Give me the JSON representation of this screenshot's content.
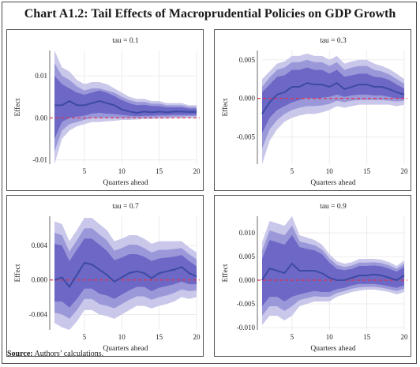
{
  "title": "Chart A1.2: Tail Effects of Macroprudential Policies on GDP Growth",
  "source_label": "Source:",
  "source_text": " Authors’ calculations.",
  "colors": {
    "band_outer": "#c9c7ea",
    "band_mid": "#9b98d9",
    "band_inner": "#6d68c6",
    "line": "#3d4aa3",
    "zero_line": "#e0304a",
    "grid": "#e6e6e6"
  },
  "chart_data": [
    {
      "type": "line",
      "panel_title": "tau = 0.1",
      "xlabel": "Quarters ahead",
      "ylabel": "Effect",
      "xlim": [
        1,
        20
      ],
      "ylim": [
        -0.011,
        0.016
      ],
      "xticks": [
        5,
        10,
        15,
        20
      ],
      "xtick_labels": [
        "5",
        "10",
        "15",
        "20"
      ],
      "yticks": [
        -0.01,
        0,
        0.01
      ],
      "ytick_labels": [
        "-0.01",
        "0.00",
        "0.01"
      ],
      "x": [
        1,
        2,
        3,
        4,
        5,
        6,
        7,
        8,
        9,
        10,
        11,
        12,
        13,
        14,
        15,
        16,
        17,
        18,
        19,
        20
      ],
      "estimate": [
        0.003,
        0.003,
        0.004,
        0.003,
        0.003,
        0.0035,
        0.004,
        0.0035,
        0.003,
        0.002,
        0.0015,
        0.0012,
        0.0015,
        0.0013,
        0.0015,
        0.0013,
        0.0015,
        0.0015,
        0.0014,
        0.0014
      ],
      "band_outer": {
        "lower": [
          -0.011,
          -0.005,
          -0.003,
          -0.002,
          -0.0015,
          -0.001,
          -0.001,
          -0.0008,
          -0.0007,
          -0.0005,
          -0.0005,
          -0.0004,
          -0.0003,
          -0.0003,
          -0.0002,
          -0.0002,
          -0.0001,
          -0.0001,
          0,
          0
        ],
        "upper": [
          0.016,
          0.012,
          0.011,
          0.009,
          0.008,
          0.0085,
          0.0085,
          0.008,
          0.007,
          0.006,
          0.005,
          0.0045,
          0.0045,
          0.004,
          0.004,
          0.0035,
          0.0035,
          0.0035,
          0.003,
          0.003
        ]
      },
      "band_mid": {
        "lower": [
          -0.008,
          -0.003,
          -0.0015,
          -0.001,
          -0.0005,
          0,
          0,
          0,
          0,
          0,
          0,
          0,
          0.0001,
          0.0001,
          0.0002,
          0.0002,
          0.0003,
          0.0003,
          0.0004,
          0.0004
        ],
        "upper": [
          0.013,
          0.01,
          0.009,
          0.0075,
          0.0065,
          0.007,
          0.007,
          0.0065,
          0.006,
          0.005,
          0.0042,
          0.0038,
          0.0038,
          0.0034,
          0.0034,
          0.003,
          0.003,
          0.003,
          0.0026,
          0.0026
        ]
      },
      "band_inner": {
        "lower": [
          -0.005,
          -0.001,
          0,
          0.0003,
          0.0005,
          0.001,
          0.0012,
          0.001,
          0.0009,
          0.0007,
          0.0005,
          0.0004,
          0.0005,
          0.0005,
          0.0006,
          0.0006,
          0.0007,
          0.0007,
          0.0007,
          0.0007
        ],
        "upper": [
          0.01,
          0.008,
          0.007,
          0.006,
          0.0055,
          0.006,
          0.0065,
          0.006,
          0.0052,
          0.0042,
          0.0035,
          0.003,
          0.0031,
          0.0028,
          0.0028,
          0.0025,
          0.0025,
          0.0025,
          0.0022,
          0.0022
        ]
      }
    },
    {
      "type": "line",
      "panel_title": "tau = 0.3",
      "xlabel": "Quarters ahead",
      "ylabel": "Effect",
      "xlim": [
        1,
        20
      ],
      "ylim": [
        -0.0085,
        0.0062
      ],
      "xticks": [
        5,
        10,
        15,
        20
      ],
      "xtick_labels": [
        "5",
        "10",
        "15",
        "20"
      ],
      "yticks": [
        -0.005,
        0,
        0.005
      ],
      "ytick_labels": [
        "-0.005",
        "0.000",
        "0.005"
      ],
      "x": [
        1,
        2,
        3,
        4,
        5,
        6,
        7,
        8,
        9,
        10,
        11,
        12,
        13,
        14,
        15,
        16,
        17,
        18,
        19,
        20
      ],
      "estimate": [
        -0.002,
        -0.0005,
        0.0005,
        0.0008,
        0.0015,
        0.0015,
        0.002,
        0.0018,
        0.0018,
        0.0015,
        0.002,
        0.0012,
        0.0015,
        0.0018,
        0.0018,
        0.0015,
        0.0015,
        0.0012,
        0.0008,
        0.0005
      ],
      "band_outer": {
        "lower": [
          -0.0085,
          -0.0055,
          -0.004,
          -0.003,
          -0.0025,
          -0.0022,
          -0.002,
          -0.002,
          -0.0018,
          -0.0015,
          -0.001,
          -0.0012,
          -0.001,
          -0.0008,
          -0.0008,
          -0.0008,
          -0.0008,
          -0.0008,
          -0.001,
          -0.0008
        ],
        "upper": [
          0.0025,
          0.0035,
          0.0045,
          0.0048,
          0.0055,
          0.0055,
          0.0058,
          0.0055,
          0.0055,
          0.005,
          0.0055,
          0.0045,
          0.0048,
          0.005,
          0.005,
          0.0045,
          0.0042,
          0.0038,
          0.0032,
          0.0025
        ]
      },
      "band_mid": {
        "lower": [
          -0.0065,
          -0.004,
          -0.0028,
          -0.002,
          -0.0015,
          -0.0012,
          -0.001,
          -0.001,
          -0.0009,
          -0.0007,
          -0.0003,
          -0.0005,
          -0.0003,
          -0.0002,
          -0.0002,
          -0.0002,
          -0.0002,
          -0.0003,
          -0.0004,
          -0.0003
        ],
        "upper": [
          0.0015,
          0.0027,
          0.0037,
          0.004,
          0.0047,
          0.0047,
          0.005,
          0.0047,
          0.0047,
          0.0042,
          0.0047,
          0.0037,
          0.004,
          0.0042,
          0.0042,
          0.0037,
          0.0035,
          0.0031,
          0.0025,
          0.0019
        ]
      },
      "band_inner": {
        "lower": [
          -0.0045,
          -0.0025,
          -0.0015,
          -0.001,
          -0.0005,
          -0.0002,
          0.0001,
          0,
          0.0001,
          0.0002,
          0.0005,
          0.0002,
          0.0004,
          0.0005,
          0.0005,
          0.0004,
          0.0004,
          0.0002,
          0,
          0
        ],
        "upper": [
          0.0008,
          0.0018,
          0.0028,
          0.003,
          0.0037,
          0.0037,
          0.004,
          0.0037,
          0.0037,
          0.0032,
          0.0037,
          0.0028,
          0.003,
          0.0032,
          0.0032,
          0.0028,
          0.0027,
          0.0024,
          0.0018,
          0.0013
        ]
      }
    },
    {
      "type": "line",
      "panel_title": "tau = 0.7",
      "xlabel": "Quarters ahead",
      "ylabel": "Effect",
      "xlim": [
        1,
        20
      ],
      "ylim": [
        -0.0058,
        0.0074
      ],
      "xticks": [
        5,
        10,
        15,
        20
      ],
      "xtick_labels": [
        "5",
        "10",
        "15",
        "20"
      ],
      "yticks": [
        -0.004,
        0,
        0.004
      ],
      "ytick_labels": [
        "-0.004",
        "0.000",
        "0.004"
      ],
      "x": [
        1,
        2,
        3,
        4,
        5,
        6,
        7,
        8,
        9,
        10,
        11,
        12,
        13,
        14,
        15,
        16,
        17,
        18,
        19,
        20
      ],
      "estimate": [
        0,
        0.0003,
        -0.0008,
        0.0006,
        0.002,
        0.0018,
        0.0012,
        0.0006,
        -0.0002,
        0.0003,
        0.0008,
        0.001,
        0.0008,
        0.0002,
        0.0008,
        0.001,
        0.0012,
        0.0015,
        0.0008,
        0.0004
      ],
      "band_outer": {
        "lower": [
          -0.005,
          -0.0055,
          -0.0058,
          -0.0048,
          -0.0035,
          -0.0035,
          -0.004,
          -0.0042,
          -0.0045,
          -0.004,
          -0.0035,
          -0.003,
          -0.003,
          -0.0033,
          -0.003,
          -0.0028,
          -0.0025,
          -0.002,
          -0.0022,
          -0.002
        ],
        "upper": [
          0.0068,
          0.0065,
          0.0045,
          0.0058,
          0.0072,
          0.0072,
          0.0065,
          0.0058,
          0.0045,
          0.0048,
          0.0052,
          0.0052,
          0.0048,
          0.0042,
          0.0045,
          0.0045,
          0.0045,
          0.0045,
          0.0038,
          0.0032
        ]
      },
      "band_mid": {
        "lower": [
          -0.0038,
          -0.004,
          -0.0045,
          -0.0035,
          -0.0022,
          -0.0022,
          -0.0028,
          -0.003,
          -0.0033,
          -0.0028,
          -0.0023,
          -0.0019,
          -0.0019,
          -0.0023,
          -0.002,
          -0.0018,
          -0.0015,
          -0.0011,
          -0.0013,
          -0.0012
        ],
        "upper": [
          0.0055,
          0.0052,
          0.0033,
          0.0046,
          0.006,
          0.006,
          0.0053,
          0.0046,
          0.0034,
          0.0037,
          0.0041,
          0.0041,
          0.0037,
          0.0032,
          0.0035,
          0.0035,
          0.0036,
          0.0037,
          0.003,
          0.0024
        ]
      },
      "band_inner": {
        "lower": [
          -0.0025,
          -0.0025,
          -0.0032,
          -0.0022,
          -0.001,
          -0.001,
          -0.0016,
          -0.0018,
          -0.0022,
          -0.0017,
          -0.0012,
          -0.0008,
          -0.0008,
          -0.0013,
          -0.0009,
          -0.0007,
          -0.0005,
          -0.0002,
          -0.0005,
          -0.0005
        ],
        "upper": [
          0.0042,
          0.004,
          0.0022,
          0.0035,
          0.0048,
          0.0048,
          0.0041,
          0.0034,
          0.0023,
          0.0026,
          0.003,
          0.003,
          0.0027,
          0.0022,
          0.0025,
          0.0026,
          0.0027,
          0.0029,
          0.0022,
          0.0016
        ]
      }
    },
    {
      "type": "line",
      "panel_title": "tau = 0.9",
      "xlabel": "Quarters ahead",
      "ylabel": "Effect",
      "xlim": [
        1,
        20
      ],
      "ylim": [
        -0.0105,
        0.0135
      ],
      "xticks": [
        5,
        10,
        15,
        20
      ],
      "xtick_labels": [
        "5",
        "10",
        "15",
        "20"
      ],
      "yticks": [
        -0.01,
        -0.005,
        0,
        0.005,
        0.01
      ],
      "ytick_labels": [
        "-0.010",
        "-0.005",
        "0.000",
        "0.005",
        "0.010"
      ],
      "x": [
        1,
        2,
        3,
        4,
        5,
        6,
        7,
        8,
        9,
        10,
        11,
        12,
        13,
        14,
        15,
        16,
        17,
        18,
        19,
        20
      ],
      "estimate": [
        0,
        0.0025,
        0.002,
        0.0015,
        0.0035,
        0.002,
        0.002,
        0.002,
        0.0015,
        0.0005,
        0,
        0,
        0.0005,
        0.001,
        0.001,
        0.0012,
        0.001,
        0.0005,
        0,
        0.001
      ],
      "band_outer": {
        "lower": [
          -0.0095,
          -0.0075,
          -0.0075,
          -0.0085,
          -0.0075,
          -0.0055,
          -0.005,
          -0.0045,
          -0.0045,
          -0.0045,
          -0.0035,
          -0.003,
          -0.0025,
          -0.0022,
          -0.002,
          -0.002,
          -0.0022,
          -0.0025,
          -0.003,
          -0.0025
        ],
        "upper": [
          0.008,
          0.0125,
          0.012,
          0.0115,
          0.0135,
          0.0095,
          0.009,
          0.0085,
          0.0075,
          0.0055,
          0.004,
          0.0035,
          0.0038,
          0.0045,
          0.0045,
          0.0045,
          0.0043,
          0.0038,
          0.003,
          0.0042
        ]
      },
      "band_mid": {
        "lower": [
          -0.0075,
          -0.0055,
          -0.0055,
          -0.0065,
          -0.0055,
          -0.0042,
          -0.0038,
          -0.0034,
          -0.0035,
          -0.0035,
          -0.0027,
          -0.0023,
          -0.0018,
          -0.0015,
          -0.0014,
          -0.0014,
          -0.0016,
          -0.0019,
          -0.0023,
          -0.0018
        ],
        "upper": [
          0.0062,
          0.0105,
          0.01,
          0.0095,
          0.0115,
          0.0082,
          0.0078,
          0.0074,
          0.0065,
          0.0046,
          0.0032,
          0.0028,
          0.0031,
          0.0037,
          0.0037,
          0.0038,
          0.0036,
          0.0031,
          0.0024,
          0.0035
        ]
      },
      "band_inner": {
        "lower": [
          -0.0055,
          -0.0035,
          -0.0035,
          -0.0045,
          -0.0035,
          -0.003,
          -0.0026,
          -0.0023,
          -0.0025,
          -0.0025,
          -0.0019,
          -0.0016,
          -0.0011,
          -0.0008,
          -0.0008,
          -0.0008,
          -0.001,
          -0.0013,
          -0.0016,
          -0.0011
        ],
        "upper": [
          0.0045,
          0.0085,
          0.008,
          0.0075,
          0.0095,
          0.007,
          0.0066,
          0.0063,
          0.0055,
          0.0037,
          0.0024,
          0.0021,
          0.0024,
          0.003,
          0.003,
          0.0031,
          0.0029,
          0.0024,
          0.0018,
          0.0028
        ]
      }
    }
  ]
}
